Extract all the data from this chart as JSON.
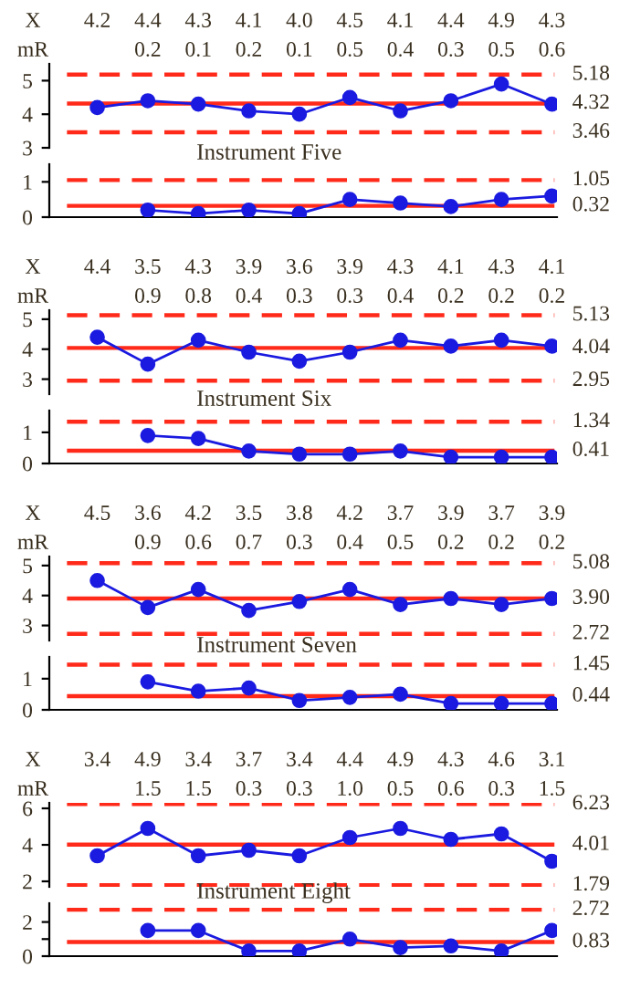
{
  "chart_data": [
    {
      "type": "line",
      "annotations": [
        "X"
      ],
      "categories": [
        null,
        null,
        null,
        null,
        null,
        null,
        null,
        null,
        null,
        null
      ],
      "values": [
        4.2,
        4.4,
        4.3,
        4.1,
        4.0,
        4.5,
        4.1,
        4.4,
        4.9,
        4.3
      ],
      "value_labels": [
        "4.2",
        "4.4",
        "4.3",
        "4.1",
        "4.0",
        "4.5",
        "4.1",
        "4.4",
        "4.9",
        "4.3"
      ],
      "color": "#1a1ae0",
      "marker": "circle",
      "tick_labels": "y",
      "ylim": [
        3,
        5.5
      ],
      "yticks": [
        3,
        4,
        5
      ],
      "ref_lines": [
        {
          "axis": "y",
          "value": 5.18,
          "label": "5.18",
          "line_style": "dashed",
          "color": "#ff2a1a"
        },
        {
          "axis": "y",
          "value": 4.32,
          "label": "4.32",
          "line_style": "solid",
          "color": "#ff2a1a"
        },
        {
          "axis": "y",
          "value": 3.46,
          "label": "3.46",
          "line_style": "dashed",
          "color": "#ff2a1a"
        }
      ]
    },
    {
      "type": "line",
      "title": "Instrument Five",
      "annotations": [
        "mR"
      ],
      "categories": [
        null,
        null,
        null,
        null,
        null,
        null,
        null,
        null,
        null,
        null
      ],
      "values": [
        null,
        0.2,
        0.1,
        0.2,
        0.1,
        0.5,
        0.4,
        0.3,
        0.5,
        0.6
      ],
      "value_labels": [
        null,
        "0.2",
        "0.1",
        "0.2",
        "0.1",
        "0.5",
        "0.4",
        "0.3",
        "0.5",
        "0.6"
      ],
      "color": "#1a1ae0",
      "marker": "circle",
      "tick_labels": "y",
      "ylim": [
        0,
        1.5
      ],
      "yticks": [
        0,
        1
      ],
      "ref_lines": [
        {
          "axis": "y",
          "value": 1.05,
          "label": "1.05",
          "line_style": "dashed",
          "color": "#ff2a1a"
        },
        {
          "axis": "y",
          "value": 0.32,
          "label": "0.32",
          "line_style": "solid",
          "color": "#ff2a1a"
        }
      ]
    },
    {
      "type": "line",
      "annotations": [
        "X"
      ],
      "categories": [
        null,
        null,
        null,
        null,
        null,
        null,
        null,
        null,
        null,
        null
      ],
      "values": [
        4.4,
        3.5,
        4.3,
        3.9,
        3.6,
        3.9,
        4.3,
        4.1,
        4.3,
        4.1
      ],
      "value_labels": [
        "4.4",
        "3.5",
        "4.3",
        "3.9",
        "3.6",
        "3.9",
        "4.3",
        "4.1",
        "4.3",
        "4.1"
      ],
      "color": "#1a1ae0",
      "marker": "circle",
      "tick_labels": "y",
      "ylim": [
        2.5,
        5.3
      ],
      "yticks": [
        3,
        4,
        5
      ],
      "ref_lines": [
        {
          "axis": "y",
          "value": 5.13,
          "label": "5.13",
          "line_style": "dashed",
          "color": "#ff2a1a"
        },
        {
          "axis": "y",
          "value": 4.04,
          "label": "4.04",
          "line_style": "solid",
          "color": "#ff2a1a"
        },
        {
          "axis": "y",
          "value": 2.95,
          "label": "2.95",
          "line_style": "dashed",
          "color": "#ff2a1a"
        }
      ]
    },
    {
      "type": "line",
      "title": "Instrument Six",
      "annotations": [
        "mR"
      ],
      "categories": [
        null,
        null,
        null,
        null,
        null,
        null,
        null,
        null,
        null,
        null
      ],
      "values": [
        null,
        0.9,
        0.8,
        0.4,
        0.3,
        0.3,
        0.4,
        0.2,
        0.2,
        0.2
      ],
      "value_labels": [
        null,
        "0.9",
        "0.8",
        "0.4",
        "0.3",
        "0.3",
        "0.4",
        "0.2",
        "0.2",
        "0.2"
      ],
      "color": "#1a1ae0",
      "marker": "circle",
      "tick_labels": "y",
      "ylim": [
        0,
        1.7
      ],
      "yticks": [
        0,
        1
      ],
      "ref_lines": [
        {
          "axis": "y",
          "value": 1.34,
          "label": "1.34",
          "line_style": "dashed",
          "color": "#ff2a1a"
        },
        {
          "axis": "y",
          "value": 0.41,
          "label": "0.41",
          "line_style": "solid",
          "color": "#ff2a1a"
        }
      ]
    },
    {
      "type": "line",
      "annotations": [
        "X"
      ],
      "categories": [
        null,
        null,
        null,
        null,
        null,
        null,
        null,
        null,
        null,
        null
      ],
      "values": [
        4.5,
        3.6,
        4.2,
        3.5,
        3.8,
        4.2,
        3.7,
        3.9,
        3.7,
        3.9
      ],
      "value_labels": [
        "4.5",
        "3.6",
        "4.2",
        "3.5",
        "3.8",
        "4.2",
        "3.7",
        "3.9",
        "3.7",
        "3.9"
      ],
      "color": "#1a1ae0",
      "marker": "circle",
      "tick_labels": "y",
      "ylim": [
        2.5,
        5.3
      ],
      "yticks": [
        3,
        4,
        5
      ],
      "ref_lines": [
        {
          "axis": "y",
          "value": 5.08,
          "label": "5.08",
          "line_style": "dashed",
          "color": "#ff2a1a"
        },
        {
          "axis": "y",
          "value": 3.9,
          "label": "3.90",
          "line_style": "solid",
          "color": "#ff2a1a"
        },
        {
          "axis": "y",
          "value": 2.72,
          "label": "2.72",
          "line_style": "dashed",
          "color": "#ff2a1a"
        }
      ]
    },
    {
      "type": "line",
      "title": "Instrument Seven",
      "annotations": [
        "mR"
      ],
      "categories": [
        null,
        null,
        null,
        null,
        null,
        null,
        null,
        null,
        null,
        null
      ],
      "values": [
        null,
        0.9,
        0.6,
        0.7,
        0.3,
        0.4,
        0.5,
        0.2,
        0.2,
        0.2
      ],
      "value_labels": [
        null,
        "0.9",
        "0.6",
        "0.7",
        "0.3",
        "0.4",
        "0.5",
        "0.2",
        "0.2",
        "0.2"
      ],
      "color": "#1a1ae0",
      "marker": "circle",
      "tick_labels": "y",
      "ylim": [
        0,
        1.7
      ],
      "yticks": [
        0,
        1
      ],
      "ref_lines": [
        {
          "axis": "y",
          "value": 1.45,
          "label": "1.45",
          "line_style": "dashed",
          "color": "#ff2a1a"
        },
        {
          "axis": "y",
          "value": 0.44,
          "label": "0.44",
          "line_style": "solid",
          "color": "#ff2a1a"
        }
      ]
    },
    {
      "type": "line",
      "annotations": [
        "X"
      ],
      "categories": [
        null,
        null,
        null,
        null,
        null,
        null,
        null,
        null,
        null,
        null
      ],
      "values": [
        3.4,
        4.9,
        3.4,
        3.7,
        3.4,
        4.4,
        4.9,
        4.3,
        4.6,
        3.1
      ],
      "value_labels": [
        "3.4",
        "4.9",
        "3.4",
        "3.7",
        "3.4",
        "4.4",
        "4.9",
        "4.3",
        "4.6",
        "3.1"
      ],
      "color": "#1a1ae0",
      "marker": "circle",
      "tick_labels": "y",
      "ylim": [
        1.7,
        6.3
      ],
      "yticks": [
        2,
        4,
        6
      ],
      "ref_lines": [
        {
          "axis": "y",
          "value": 6.23,
          "label": "6.23",
          "line_style": "dashed",
          "color": "#ff2a1a"
        },
        {
          "axis": "y",
          "value": 4.01,
          "label": "4.01",
          "line_style": "solid",
          "color": "#ff2a1a"
        },
        {
          "axis": "y",
          "value": 1.79,
          "label": "1.79",
          "line_style": "dashed",
          "color": "#ff2a1a"
        }
      ]
    },
    {
      "type": "line",
      "title": "Instrument Eight",
      "annotations": [
        "mR"
      ],
      "categories": [
        null,
        null,
        null,
        null,
        null,
        null,
        null,
        null,
        null,
        null
      ],
      "values": [
        null,
        1.5,
        1.5,
        0.3,
        0.3,
        1.0,
        0.5,
        0.6,
        0.3,
        1.5
      ],
      "value_labels": [
        null,
        "1.5",
        "1.5",
        "0.3",
        "0.3",
        "1.0",
        "0.5",
        "0.6",
        "0.3",
        "1.5"
      ],
      "color": "#1a1ae0",
      "marker": "circle",
      "tick_labels": "y",
      "ylim": [
        0,
        3.1
      ],
      "yticks": [
        0,
        {
          "value": 1,
          "label": null
        },
        2
      ],
      "ref_lines": [
        {
          "axis": "y",
          "value": 2.72,
          "label": "2.72",
          "line_style": "dashed",
          "color": "#ff2a1a"
        },
        {
          "axis": "y",
          "value": 0.83,
          "label": "0.83",
          "line_style": "solid",
          "color": "#ff2a1a"
        }
      ]
    }
  ]
}
